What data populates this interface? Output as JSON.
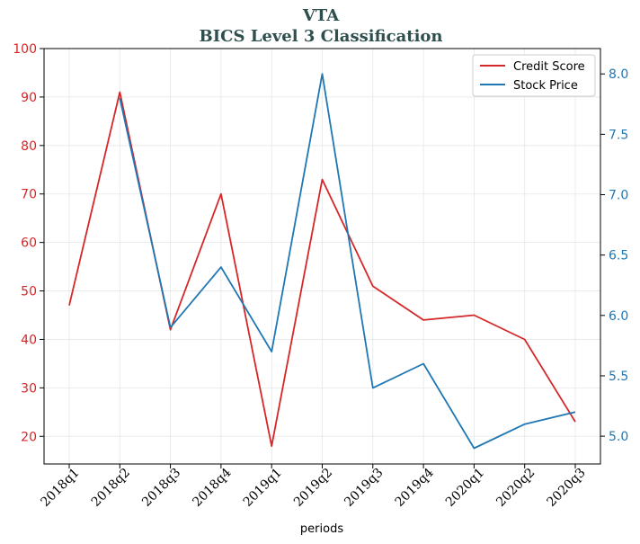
{
  "chart_data": {
    "type": "line",
    "title": "VTA",
    "subtitle": "BICS Level 3 Classification",
    "xlabel": "periods",
    "categories": [
      "2018q1",
      "2018q2",
      "2018q3",
      "2018q4",
      "2019q1",
      "2019q2",
      "2019q3",
      "2019q4",
      "2020q1",
      "2020q2",
      "2020q3"
    ],
    "series": [
      {
        "name": "Credit Score",
        "axis": "left",
        "color": "#d62728",
        "values": [
          47,
          91,
          42,
          70,
          18,
          73,
          51,
          44,
          45,
          40,
          23
        ]
      },
      {
        "name": "Stock Price",
        "axis": "right",
        "color": "#1f77b4",
        "values": [
          null,
          7.8,
          5.9,
          6.4,
          5.7,
          8.0,
          5.4,
          5.6,
          4.9,
          5.1,
          5.2
        ]
      }
    ],
    "y_left": {
      "lim": [
        14.3,
        100
      ],
      "ticks": [
        "20",
        "30",
        "40",
        "50",
        "60",
        "70",
        "80",
        "90",
        "100"
      ]
    },
    "y_right": {
      "lim": [
        4.77,
        8.21
      ],
      "ticks": [
        "5.0",
        "5.5",
        "6.0",
        "6.5",
        "7.0",
        "7.5",
        "8.0"
      ]
    },
    "grid": true,
    "legend": "top-right"
  }
}
